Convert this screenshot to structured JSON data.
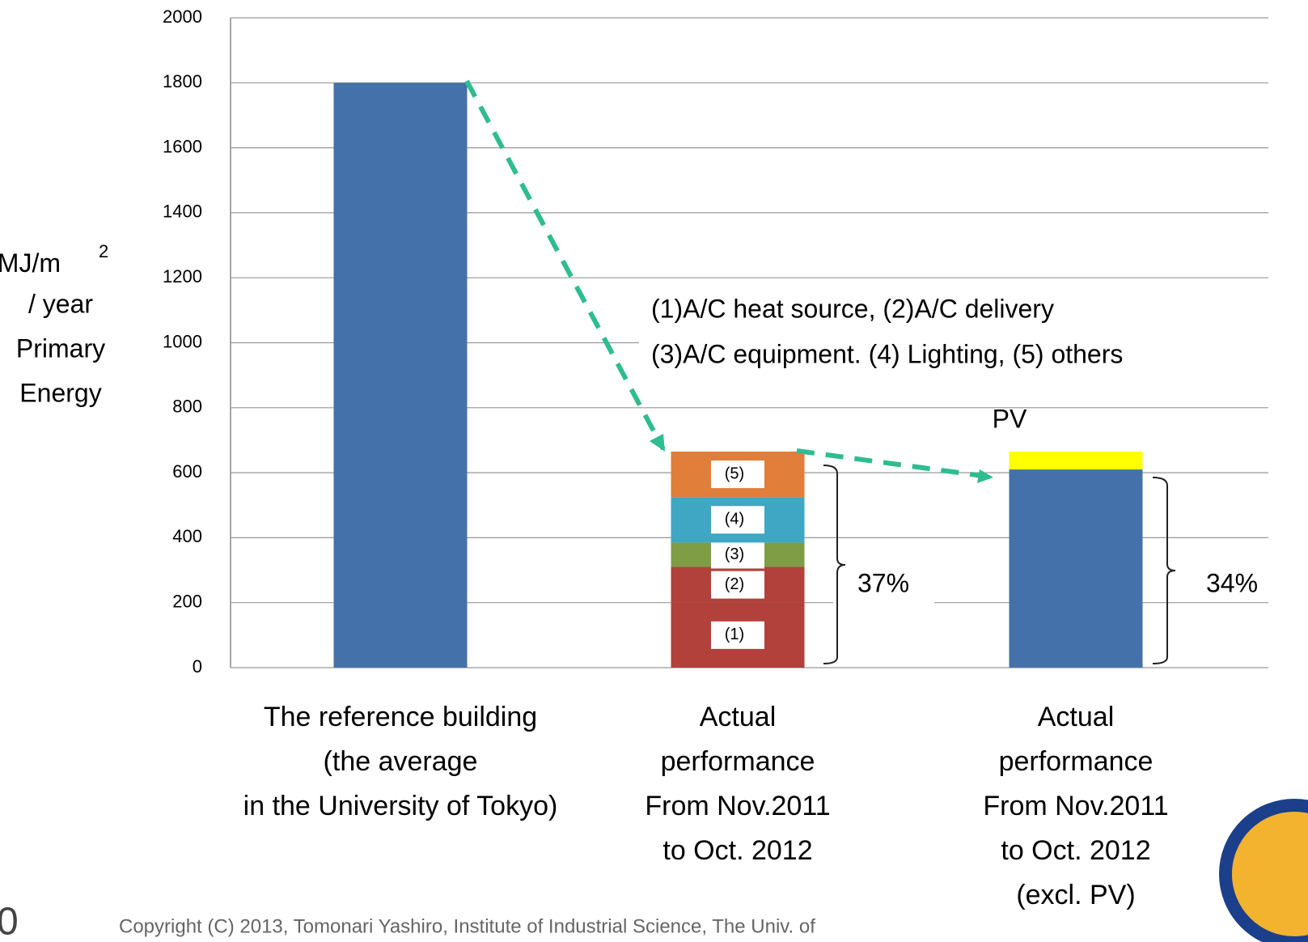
{
  "chart_data": {
    "type": "stacked_bar",
    "ylabel": {
      "unit": "MJ/m",
      "sup": "2",
      "lines": [
        "/ year",
        "Primary",
        "Energy"
      ]
    },
    "categories": [
      [
        "The reference building",
        "(the average",
        "in the University of Tokyo)"
      ],
      [
        "Actual",
        "performance",
        "From Nov.2011",
        "to Oct. 2012"
      ],
      [
        "Actual",
        "performance",
        "From Nov.2011",
        "to Oct. 2012",
        "(excl. PV)"
      ]
    ],
    "series": [
      {
        "color": "#4471a9",
        "values": [
          1800,
          null,
          610
        ]
      },
      {
        "name": "(1)",
        "color": "#b2403b",
        "values": [
          null,
          200,
          null
        ]
      },
      {
        "name": "(2)",
        "color": "#b2403b",
        "values": [
          null,
          110,
          null
        ]
      },
      {
        "name": "(3)",
        "color": "#7f9d45",
        "values": [
          null,
          75,
          null
        ]
      },
      {
        "name": "(4)",
        "color": "#3fa7c4",
        "values": [
          null,
          140,
          null
        ]
      },
      {
        "name": "(5)",
        "color": "#e07e3a",
        "values": [
          null,
          140,
          null
        ]
      },
      {
        "name": "PV",
        "color": "#ffff00",
        "values": [
          null,
          null,
          55
        ]
      }
    ],
    "ylim": [
      0,
      2000
    ],
    "yticks": [
      0,
      200,
      400,
      600,
      800,
      1000,
      1200,
      1400,
      1600,
      1800,
      2000
    ],
    "grid": true,
    "annotations": [
      "(1)A/C heat source, (2)A/C delivery",
      "(3)A/C equipment. (4) Lighting, (5) others",
      "37%",
      "34%"
    ],
    "footer": "Copyright (C) 2013, Tomonari Yashiro, Institute of Industrial Science, The Univ. of",
    "page_number": "0"
  }
}
